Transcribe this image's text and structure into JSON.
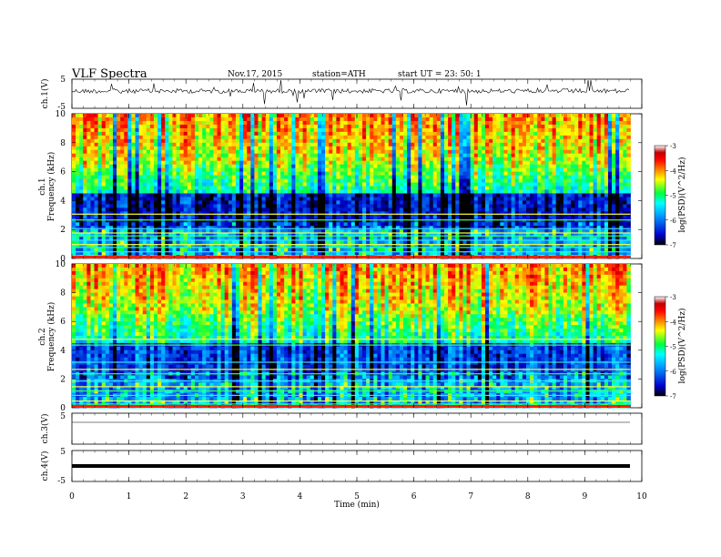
{
  "header": {
    "title": "VLF  Spectra",
    "date": "Nov.17, 2015",
    "station": "station=ATH",
    "start": "start  UT  =    23: 50: 1"
  },
  "colors": {
    "colormap": [
      "#000000",
      "#0000cc",
      "#00a0ff",
      "#00ffff",
      "#00ff40",
      "#ffff00",
      "#ff8000",
      "#ff0000",
      "#c00000",
      "#ffffff"
    ],
    "trace": "#000000"
  },
  "chart_data": [
    {
      "type": "line",
      "ylabel": "ch.1(V)",
      "yticks": [
        "5",
        "-5"
      ],
      "ylim": [
        -5,
        5
      ],
      "x": [
        0,
        1,
        2,
        3,
        4,
        5,
        6,
        7,
        8,
        9,
        9.8
      ],
      "values": [
        0,
        0,
        0,
        0,
        0,
        0,
        0,
        0,
        0,
        0,
        0
      ]
    },
    {
      "type": "heatmap",
      "ylabel": "ch.1",
      "ylabel2": "Frequency  (kHz)",
      "yticks": [
        "10",
        "8",
        "6",
        "4",
        "2",
        "0"
      ],
      "ylim": [
        0,
        10
      ],
      "xlim": [
        0,
        9.8
      ],
      "colorbar_label": "log(PSD)(V^2/Hz)",
      "colorbar_ticks": [
        "-3",
        "-4",
        "-5",
        "-6",
        "-7"
      ],
      "clim": [
        -7,
        -3
      ]
    },
    {
      "type": "heatmap",
      "ylabel": "ch.2",
      "ylabel2": "Frequency  (kHz)",
      "yticks": [
        "10",
        "8",
        "6",
        "4",
        "2",
        "0"
      ],
      "ylim": [
        0,
        10
      ],
      "xlim": [
        0,
        9.8
      ],
      "colorbar_label": "log(PSD)(V^2/Hz)",
      "colorbar_ticks": [
        "-3",
        "-4",
        "-5",
        "-6",
        "-7"
      ],
      "clim": [
        -7,
        -3
      ]
    },
    {
      "type": "line",
      "ylabel": "ch.3(V)",
      "yticks": [
        "5"
      ],
      "ylim": [
        -5,
        5
      ]
    },
    {
      "type": "line",
      "ylabel": "ch.4(V)",
      "yticks": [
        "5",
        "-5"
      ],
      "ylim": [
        -5,
        5
      ]
    }
  ],
  "xaxis": {
    "label": "Time  (min)",
    "ticks": [
      "0",
      "1",
      "2",
      "3",
      "4",
      "5",
      "6",
      "7",
      "8",
      "9",
      "10"
    ],
    "xlim": [
      0,
      10
    ]
  }
}
